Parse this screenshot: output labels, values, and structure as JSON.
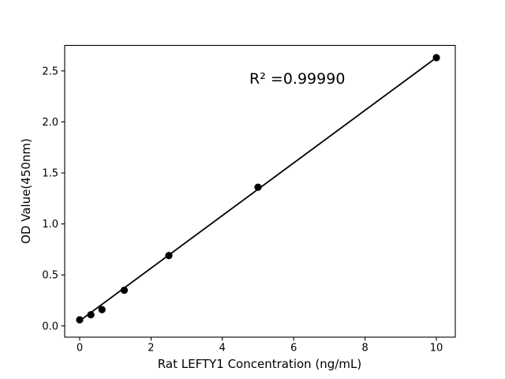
{
  "chart_data": {
    "type": "scatter",
    "title": "",
    "xlabel": "Rat LEFTY1 Concentration (ng/mL)",
    "ylabel": "OD Value(450nm)",
    "x": [
      0,
      0.313,
      0.625,
      1.25,
      2.5,
      5,
      10
    ],
    "y": [
      0.06,
      0.11,
      0.16,
      0.35,
      0.69,
      1.36,
      2.63
    ],
    "fit_line": {
      "name": "linear-fit",
      "x": [
        0,
        10
      ],
      "y": [
        0.05,
        2.63
      ]
    },
    "annotation": {
      "text": "R² =0.99990",
      "x": 6.1,
      "y": 2.42
    },
    "r_squared": 0.9999,
    "xlim": [
      -0.42,
      10.53
    ],
    "ylim": [
      -0.11,
      2.75
    ],
    "xticks": [
      0,
      2,
      4,
      6,
      8,
      10
    ],
    "yticks": [
      0,
      0.5,
      1,
      1.5,
      2,
      2.5
    ],
    "grid": false,
    "legend": null,
    "background": "#ffffff",
    "axis_color": "#000000",
    "line_color": "#000000",
    "marker_color": "#000000",
    "marker_radius_px": 4.6
  }
}
